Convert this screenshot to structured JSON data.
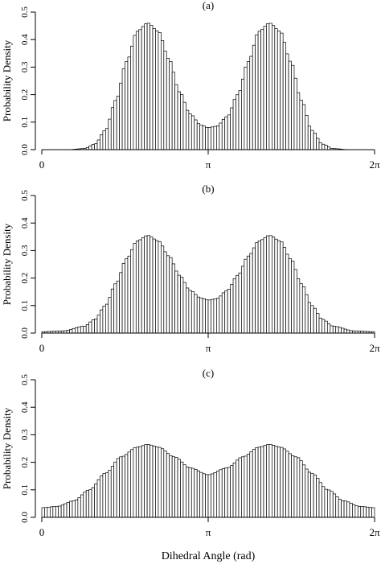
{
  "figure": {
    "xlabel": "Dihedral Angle (rad)",
    "ylabel": "Probability Density",
    "x_tick_labels": [
      "0",
      "π",
      "2π"
    ],
    "y_tick_labels": [
      "0.0",
      "0.1",
      "0.2",
      "0.3",
      "0.4",
      "0.5"
    ]
  },
  "chart_data": [
    {
      "type": "bar",
      "panel_label": "(a)",
      "xlabel": "",
      "ylabel": "Probability Density",
      "xlim": [
        0,
        6.2832
      ],
      "ylim": [
        0,
        0.5
      ],
      "x_ticks": [
        0,
        3.1416,
        6.2832
      ],
      "x_tick_labels": [
        "0",
        "π",
        "2π"
      ],
      "y_ticks": [
        0,
        0.1,
        0.2,
        0.3,
        0.4,
        0.5
      ],
      "bin_count": 120,
      "curve": {
        "x": [
          0,
          0.5,
          0.8,
          1.0,
          1.2,
          1.4,
          1.6,
          1.8,
          2.0,
          2.2,
          2.4,
          2.6,
          2.8,
          3.0,
          3.1416,
          3.3,
          3.5,
          3.7,
          3.9,
          4.1,
          4.3,
          4.5,
          4.7,
          4.9,
          5.1,
          5.3,
          5.5,
          5.8,
          6.2832
        ],
        "y": [
          0.0,
          0.0,
          0.004,
          0.02,
          0.07,
          0.18,
          0.32,
          0.43,
          0.46,
          0.43,
          0.33,
          0.21,
          0.13,
          0.09,
          0.08,
          0.085,
          0.12,
          0.2,
          0.32,
          0.43,
          0.46,
          0.43,
          0.32,
          0.18,
          0.07,
          0.02,
          0.004,
          0.0,
          0.0
        ]
      }
    },
    {
      "type": "bar",
      "panel_label": "(b)",
      "xlabel": "",
      "ylabel": "Probability Density",
      "xlim": [
        0,
        6.2832
      ],
      "ylim": [
        0,
        0.5
      ],
      "x_ticks": [
        0,
        3.1416,
        6.2832
      ],
      "x_tick_labels": [
        "0",
        "π",
        "2π"
      ],
      "y_ticks": [
        0,
        0.1,
        0.2,
        0.3,
        0.4,
        0.5
      ],
      "bin_count": 120,
      "curve": {
        "x": [
          0,
          0.4,
          0.8,
          1.0,
          1.2,
          1.4,
          1.6,
          1.8,
          2.0,
          2.2,
          2.4,
          2.6,
          2.8,
          3.0,
          3.1416,
          3.3,
          3.5,
          3.7,
          3.9,
          4.1,
          4.3,
          4.5,
          4.7,
          4.9,
          5.1,
          5.3,
          5.5,
          5.9,
          6.2832
        ],
        "y": [
          0.005,
          0.008,
          0.025,
          0.05,
          0.1,
          0.18,
          0.27,
          0.335,
          0.355,
          0.335,
          0.28,
          0.21,
          0.155,
          0.128,
          0.12,
          0.125,
          0.155,
          0.21,
          0.28,
          0.335,
          0.355,
          0.335,
          0.27,
          0.18,
          0.1,
          0.05,
          0.025,
          0.008,
          0.005
        ]
      }
    },
    {
      "type": "bar",
      "panel_label": "(c)",
      "xlabel": "Dihedral Angle (rad)",
      "ylabel": "Probability Density",
      "xlim": [
        0,
        6.2832
      ],
      "ylim": [
        0,
        0.5
      ],
      "x_ticks": [
        0,
        3.1416,
        6.2832
      ],
      "x_tick_labels": [
        "0",
        "π",
        "2π"
      ],
      "y_ticks": [
        0,
        0.1,
        0.2,
        0.3,
        0.4,
        0.5
      ],
      "bin_count": 120,
      "curve": {
        "x": [
          0,
          0.3,
          0.6,
          0.9,
          1.2,
          1.5,
          1.8,
          2.0,
          2.2,
          2.5,
          2.8,
          3.1416,
          3.5,
          3.8,
          4.1,
          4.3,
          4.5,
          4.8,
          5.1,
          5.4,
          5.7,
          6.0,
          6.2832
        ],
        "y": [
          0.035,
          0.04,
          0.06,
          0.1,
          0.16,
          0.22,
          0.255,
          0.265,
          0.255,
          0.22,
          0.18,
          0.155,
          0.18,
          0.22,
          0.255,
          0.265,
          0.255,
          0.22,
          0.16,
          0.1,
          0.06,
          0.04,
          0.035
        ]
      }
    }
  ]
}
